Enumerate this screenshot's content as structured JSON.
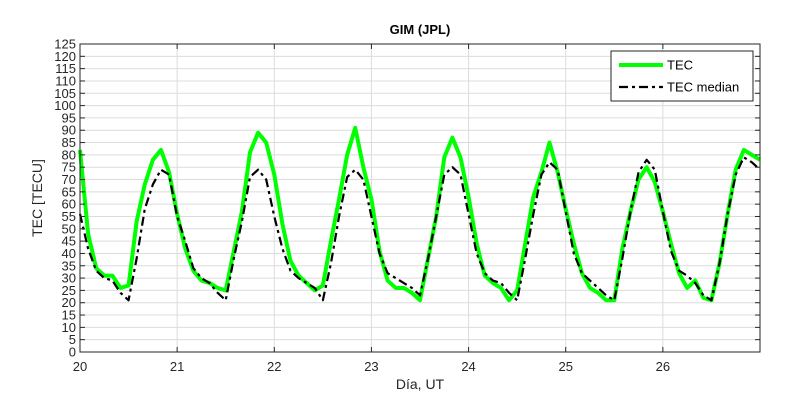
{
  "chart_data": {
    "type": "line",
    "title": "GIM (JPL)",
    "xlabel": "Día, UT",
    "ylabel": "TEC [TECU]",
    "xlim": [
      20,
      27
    ],
    "ylim": [
      0,
      125
    ],
    "grid": true,
    "legend_position": "top-right",
    "x_ticks": [
      20,
      21,
      22,
      23,
      24,
      25,
      26
    ],
    "y_ticks": [
      0,
      5,
      10,
      15,
      20,
      25,
      30,
      35,
      40,
      45,
      50,
      55,
      60,
      65,
      70,
      75,
      80,
      85,
      90,
      95,
      100,
      105,
      110,
      115,
      120,
      125
    ],
    "series": [
      {
        "name": "TEC",
        "color": "#00ff00",
        "style": "solid",
        "x": [
          20.0,
          20.0833,
          20.1667,
          20.25,
          20.3333,
          20.4167,
          20.5,
          20.5833,
          20.6667,
          20.75,
          20.8333,
          20.9167,
          21.0,
          21.0833,
          21.1667,
          21.25,
          21.3333,
          21.4167,
          21.5,
          21.5833,
          21.6667,
          21.75,
          21.8333,
          21.9167,
          22.0,
          22.0833,
          22.1667,
          22.25,
          22.3333,
          22.4167,
          22.5,
          22.5833,
          22.6667,
          22.75,
          22.8333,
          22.9167,
          23.0,
          23.0833,
          23.1667,
          23.25,
          23.3333,
          23.4167,
          23.5,
          23.5833,
          23.6667,
          23.75,
          23.8333,
          23.9167,
          24.0,
          24.0833,
          24.1667,
          24.25,
          24.3333,
          24.4167,
          24.5,
          24.5833,
          24.6667,
          24.75,
          24.8333,
          24.9167,
          25.0,
          25.0833,
          25.1667,
          25.25,
          25.3333,
          25.4167,
          25.5,
          25.5833,
          25.6667,
          25.75,
          25.8333,
          25.9167,
          26.0,
          26.0833,
          26.1667,
          26.25,
          26.3333,
          26.4167,
          26.5,
          26.5833,
          26.6667,
          26.75,
          26.8333,
          26.9167,
          27.0
        ],
        "y": [
          82,
          48,
          34,
          31,
          31,
          26,
          27,
          53,
          68,
          78,
          82,
          73,
          56,
          42,
          33,
          29,
          28,
          26,
          25,
          41,
          57,
          81,
          89,
          85,
          72,
          52,
          37,
          31,
          28,
          25,
          27,
          45,
          62,
          80,
          91,
          75,
          62,
          41,
          29,
          26,
          26,
          24,
          21,
          38,
          55,
          79,
          87,
          79,
          63,
          44,
          31,
          28,
          26,
          21,
          25,
          44,
          63,
          73,
          85,
          73,
          58,
          44,
          32,
          26,
          24,
          21,
          21,
          42,
          57,
          70,
          75,
          69,
          57,
          44,
          32,
          26,
          29,
          22,
          21,
          36,
          56,
          74,
          82,
          80,
          78
        ]
      },
      {
        "name": "TEC median",
        "color": "#000000",
        "style": "dash-dot",
        "x": [
          20.0,
          20.0833,
          20.1667,
          20.25,
          20.3333,
          20.4167,
          20.5,
          20.5833,
          20.6667,
          20.75,
          20.8333,
          20.9167,
          21.0,
          21.0833,
          21.1667,
          21.25,
          21.3333,
          21.4167,
          21.5,
          21.5833,
          21.6667,
          21.75,
          21.8333,
          21.9167,
          22.0,
          22.0833,
          22.1667,
          22.25,
          22.3333,
          22.4167,
          22.5,
          22.5833,
          22.6667,
          22.75,
          22.8333,
          22.9167,
          23.0,
          23.0833,
          23.1667,
          23.25,
          23.3333,
          23.4167,
          23.5,
          23.5833,
          23.6667,
          23.75,
          23.8333,
          23.9167,
          24.0,
          24.0833,
          24.1667,
          24.25,
          24.3333,
          24.4167,
          24.5,
          24.5833,
          24.6667,
          24.75,
          24.8333,
          24.9167,
          25.0,
          25.0833,
          25.1667,
          25.25,
          25.3333,
          25.4167,
          25.5,
          25.5833,
          25.6667,
          25.75,
          25.8333,
          25.9167,
          26.0,
          26.0833,
          26.1667,
          26.25,
          26.3333,
          26.4167,
          26.5,
          26.5833,
          26.6667,
          26.75,
          26.8333,
          26.9167,
          27.0
        ],
        "y": [
          56,
          42,
          33,
          30,
          29,
          24,
          21,
          38,
          58,
          68,
          74,
          72,
          55,
          45,
          34,
          30,
          28,
          24,
          21,
          38,
          53,
          71,
          74,
          70,
          55,
          42,
          33,
          30,
          28,
          26,
          21,
          36,
          55,
          71,
          74,
          70,
          55,
          40,
          32,
          30,
          28,
          26,
          23,
          38,
          55,
          72,
          75,
          72,
          56,
          40,
          32,
          29,
          28,
          24,
          21,
          38,
          56,
          72,
          77,
          74,
          57,
          40,
          32,
          29,
          26,
          23,
          21,
          38,
          57,
          73,
          78,
          74,
          57,
          41,
          33,
          31,
          28,
          23,
          21,
          36,
          56,
          72,
          79,
          77,
          74
        ]
      }
    ]
  }
}
